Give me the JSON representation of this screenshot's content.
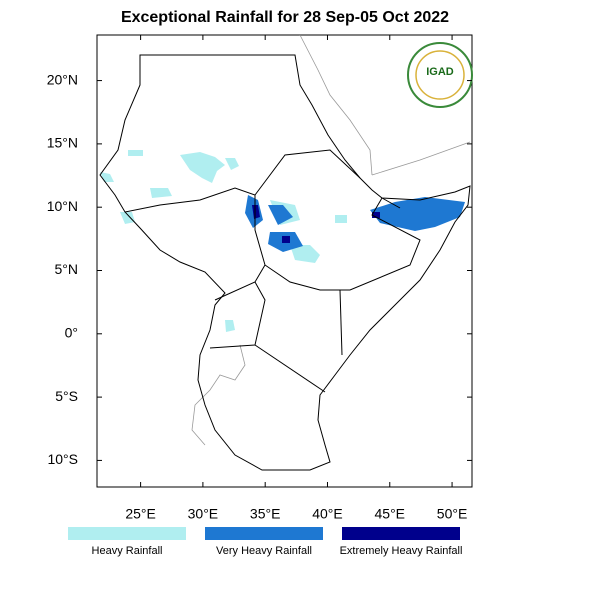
{
  "title": "Exceptional Rainfall for 28 Sep-05 Oct 2022",
  "map": {
    "xlim": [
      21.5,
      51.6
    ],
    "ylim": [
      -12.1,
      23.6
    ],
    "xticks": [
      {
        "value": 25,
        "label": "25°E"
      },
      {
        "value": 30,
        "label": "30°E"
      },
      {
        "value": 35,
        "label": "35°E"
      },
      {
        "value": 40,
        "label": "40°E"
      },
      {
        "value": 45,
        "label": "45°E"
      },
      {
        "value": 50,
        "label": "50°E"
      }
    ],
    "yticks": [
      {
        "value": 20,
        "label": "20°N"
      },
      {
        "value": 15,
        "label": "15°N"
      },
      {
        "value": 10,
        "label": "10°N"
      },
      {
        "value": 5,
        "label": "5°N"
      },
      {
        "value": 0,
        "label": "0°"
      },
      {
        "value": -5,
        "label": "5°S"
      },
      {
        "value": -10,
        "label": "10°S"
      }
    ]
  },
  "logo": {
    "text": "IGAD"
  },
  "legend": [
    {
      "label": "Heavy Rainfall",
      "color": "#b0eef0"
    },
    {
      "label": "Very Heavy Rainfall",
      "color": "#1e78d2"
    },
    {
      "label": "Extremely Heavy Rainfall",
      "color": "#00008c"
    }
  ]
}
